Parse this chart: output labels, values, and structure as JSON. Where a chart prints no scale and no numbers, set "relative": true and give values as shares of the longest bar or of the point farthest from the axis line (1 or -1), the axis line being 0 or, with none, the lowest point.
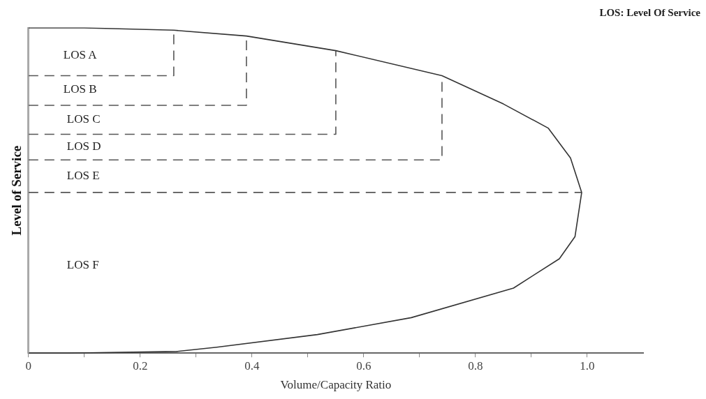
{
  "chart_data": {
    "type": "line",
    "relative": true,
    "xlabel": "Volume/Capacity Ratio",
    "ylabel": "Level of Service",
    "xlim": [
      0,
      1.1
    ],
    "xticks": [
      0,
      {
        "value": 0.1,
        "label": null
      },
      0.2,
      {
        "value": 0.3,
        "label": null
      },
      0.4,
      {
        "value": 0.5,
        "label": null
      },
      0.6,
      {
        "value": 0.7,
        "label": null
      },
      0.8,
      {
        "value": 0.9,
        "label": null
      },
      {
        "value": 1,
        "label": "1.0"
      }
    ],
    "grid": false,
    "legend": false,
    "marker": "none",
    "series": [
      {
        "color": "#333333",
        "line_style": "solid",
        "x": [
          0,
          0.1,
          0.26,
          0.39,
          0.55,
          0.74,
          0.85,
          0.93,
          0.97,
          0.99,
          0.978,
          0.95,
          0.868,
          0.685,
          0.517,
          0.337,
          0.265,
          0.07,
          0
        ],
        "values": [
          1,
          1,
          0.993,
          0.975,
          0.93,
          0.853,
          0.766,
          0.692,
          0.6,
          0.494,
          0.358,
          0.29,
          0.2,
          0.109,
          0.057,
          0.018,
          0.005,
          0,
          0
        ]
      },
      {
        "color": "#555555",
        "line_style": "dashed",
        "x": [
          0,
          0.26,
          0.26
        ],
        "values": [
          0.853,
          0.853,
          0.993
        ]
      },
      {
        "color": "#555555",
        "line_style": "dashed",
        "x": [
          0,
          0.39,
          0.39
        ],
        "values": [
          0.762,
          0.762,
          0.975
        ]
      },
      {
        "color": "#555555",
        "line_style": "dashed",
        "x": [
          0,
          0.55,
          0.55
        ],
        "values": [
          0.673,
          0.673,
          0.93
        ]
      },
      {
        "color": "#555555",
        "line_style": "dashed",
        "x": [
          0,
          0.74,
          0.74
        ],
        "values": [
          0.594,
          0.594,
          0.853
        ]
      },
      {
        "color": "#555555",
        "line_style": "dashed",
        "x": [
          0,
          0.99
        ],
        "values": [
          0.494,
          0.494
        ]
      }
    ],
    "annotations": [
      "LOS: Level Of Service",
      "LOS A",
      "LOS B",
      "LOS C",
      "LOS D",
      "LOS E",
      "LOS F"
    ]
  }
}
